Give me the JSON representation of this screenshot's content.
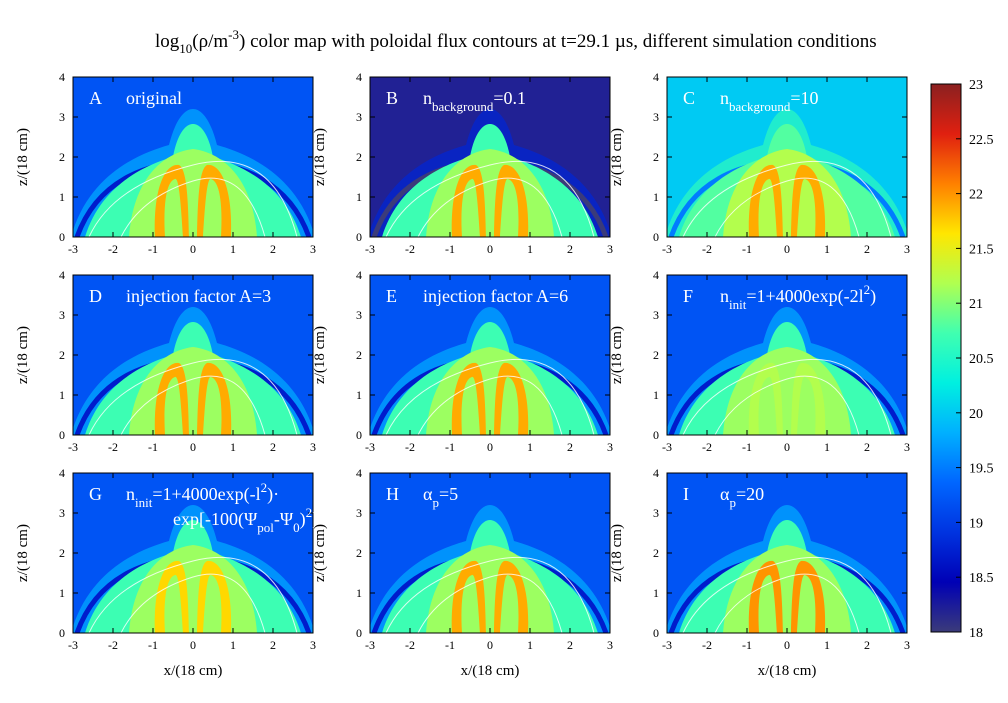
{
  "chart_data": {
    "type": "heatmap",
    "title": {
      "pre": "log",
      "sub1": "10",
      "mid": "(ρ/m",
      "sup": "-3",
      "post": ") color map with poloidal flux contours at t=29.1 µs, different simulation conditions"
    },
    "colorbar": {
      "vmin": 18,
      "vmax": 23,
      "ticks": [
        "18",
        "18.5",
        "19",
        "19.5",
        "20",
        "20.5",
        "21",
        "21.5",
        "22",
        "22.5",
        "23"
      ],
      "stops": [
        "#3b3b7a",
        "#0000b5",
        "#0033e0",
        "#0066ff",
        "#00b0ff",
        "#00f0e0",
        "#40ffb0",
        "#b0ff50",
        "#ffe600",
        "#ff8000",
        "#e02010",
        "#8b2020"
      ]
    },
    "xlabel": "x/(18 cm)",
    "ylabel": "z/(18 cm)",
    "xticks": [
      "-3",
      "-2",
      "-1",
      "0",
      "1",
      "2",
      "3"
    ],
    "yticks": [
      "0",
      "1",
      "2",
      "3",
      "4"
    ],
    "xlim": [
      -3,
      3
    ],
    "ylim": [
      0,
      4
    ],
    "panels": [
      {
        "letter": "A",
        "label_parts": [
          {
            "t": "original"
          }
        ],
        "background_value": 19.2,
        "jet_core_value": 21.9,
        "envelope_value": 20.7,
        "extra_label": null
      },
      {
        "letter": "B",
        "label_parts": [
          {
            "t": "n"
          },
          {
            "t": "background",
            "sub": true
          },
          {
            "t": "=0.1"
          }
        ],
        "background_value": 18.2,
        "jet_core_value": 21.9,
        "envelope_value": 20.7,
        "extra_label": null
      },
      {
        "letter": "C",
        "label_parts": [
          {
            "t": "n"
          },
          {
            "t": "background",
            "sub": true
          },
          {
            "t": "=10"
          }
        ],
        "background_value": 20.0,
        "jet_core_value": 21.9,
        "envelope_value": 20.8,
        "extra_label": null
      },
      {
        "letter": "D",
        "label_parts": [
          {
            "t": "injection factor A=3"
          }
        ],
        "background_value": 19.2,
        "jet_core_value": 21.9,
        "envelope_value": 20.7,
        "extra_label": null
      },
      {
        "letter": "E",
        "label_parts": [
          {
            "t": "injection factor A=6"
          }
        ],
        "background_value": 19.2,
        "jet_core_value": 21.9,
        "envelope_value": 20.7,
        "extra_label": null
      },
      {
        "letter": "F",
        "label_parts": [
          {
            "t": "n"
          },
          {
            "t": "init",
            "sub": true
          },
          {
            "t": "=1+4000exp(-2l"
          },
          {
            "t": "2",
            "sup": true
          },
          {
            "t": ")"
          }
        ],
        "background_value": 19.2,
        "jet_core_value": 21.2,
        "envelope_value": 20.7,
        "extra_label": null
      },
      {
        "letter": "G",
        "label_parts": [
          {
            "t": "n"
          },
          {
            "t": "init",
            "sub": true
          },
          {
            "t": "=1+4000exp(-l"
          },
          {
            "t": "2",
            "sup": true
          },
          {
            "t": ")·"
          }
        ],
        "background_value": 19.2,
        "jet_core_value": 21.7,
        "envelope_value": 20.7,
        "extra_label": [
          {
            "t": "exp[-100(Ψ"
          },
          {
            "t": "pol",
            "sub": true
          },
          {
            "t": "-Ψ"
          },
          {
            "t": "0",
            "sub": true
          },
          {
            "t": ")"
          },
          {
            "t": "2",
            "sup": true
          },
          {
            "t": "]"
          }
        ]
      },
      {
        "letter": "H",
        "label_parts": [
          {
            "t": "α"
          },
          {
            "t": "p",
            "sub": true
          },
          {
            "t": "=5"
          }
        ],
        "background_value": 19.2,
        "jet_core_value": 21.9,
        "envelope_value": 20.7,
        "extra_label": null
      },
      {
        "letter": "I",
        "label_parts": [
          {
            "t": "α"
          },
          {
            "t": "p",
            "sub": true
          },
          {
            "t": "=20"
          }
        ],
        "background_value": 19.2,
        "jet_core_value": 22.0,
        "envelope_value": 20.7,
        "extra_label": null
      }
    ]
  }
}
